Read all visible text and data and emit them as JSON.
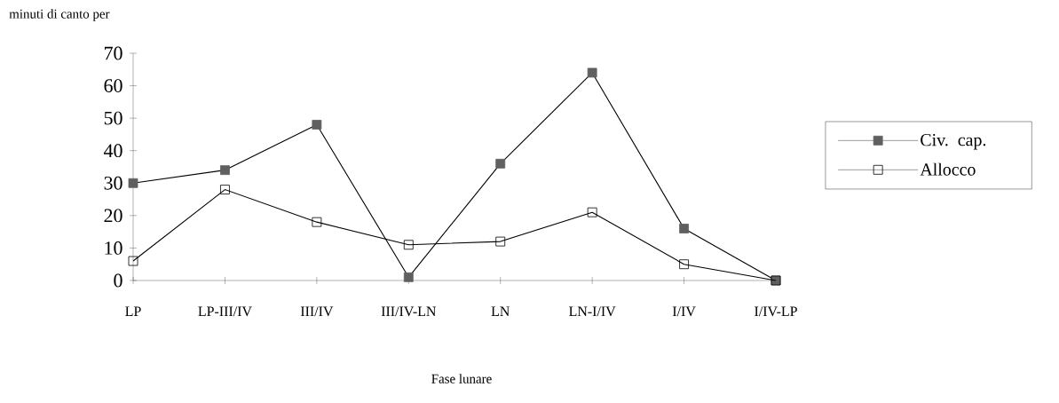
{
  "chart_data": {
    "type": "line",
    "ylabel": "minuti di canto per",
    "xlabel": "Fase lunare",
    "categories": [
      "LP",
      "LP-III/IV",
      "III/IV",
      "III/IV-LN",
      "LN",
      "LN-I/IV",
      "I/IV",
      "I/IV-LP"
    ],
    "series": [
      {
        "name": "Civ. cap.",
        "color": "#606060",
        "values": [
          30,
          34,
          48,
          1,
          36,
          64,
          16,
          0
        ]
      },
      {
        "name": "Allocco",
        "color": "#000000",
        "values": [
          6,
          28,
          18,
          11,
          12,
          21,
          5,
          0
        ]
      }
    ],
    "ylim": [
      0,
      70
    ],
    "yticks": [
      0,
      10,
      20,
      30,
      40,
      50,
      60,
      70
    ],
    "marker": "square",
    "line_style": "solid",
    "legend": "right",
    "grid": false
  }
}
